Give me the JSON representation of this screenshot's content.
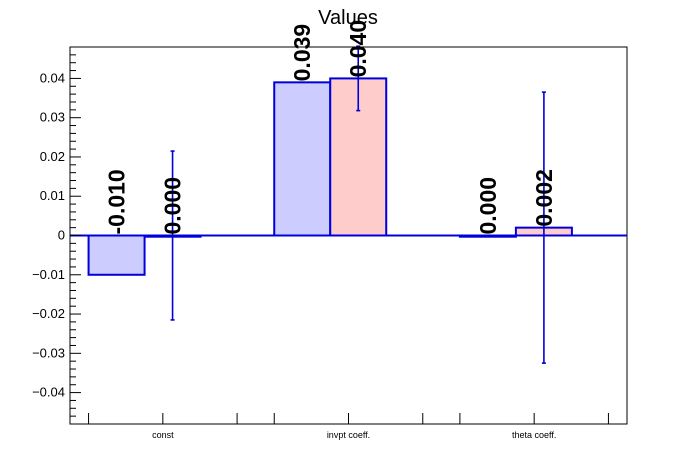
{
  "chart_data": {
    "type": "bar",
    "title": "Values",
    "xlabel": "",
    "ylabel": "",
    "categories": [
      "const",
      "invpt coeff.",
      "theta coeff."
    ],
    "ylim": [
      -0.048,
      0.048
    ],
    "yticks": [
      -0.04,
      -0.03,
      -0.02,
      -0.01,
      0,
      0.01,
      0.02,
      0.03,
      0.04
    ],
    "ytick_labels": [
      "−0.04",
      "−0.03",
      "−0.02",
      "−0.01",
      "0",
      "0.01",
      "0.02",
      "0.03",
      "0.04"
    ],
    "grid": false,
    "series": [
      {
        "values": [
          -0.01,
          0.039,
          0.0
        ],
        "labels": [
          "-0.010",
          "0.039",
          "0.000"
        ],
        "fill": "#ccccff",
        "stroke": "#0000dd"
      },
      {
        "values": [
          0.0,
          0.04,
          0.002
        ],
        "labels": [
          "0.000",
          "0.040",
          "0.002"
        ],
        "errors": [
          0.0215,
          0.0082,
          0.0345
        ],
        "fill": "#ffcccc",
        "stroke": "#0000dd"
      }
    ]
  }
}
